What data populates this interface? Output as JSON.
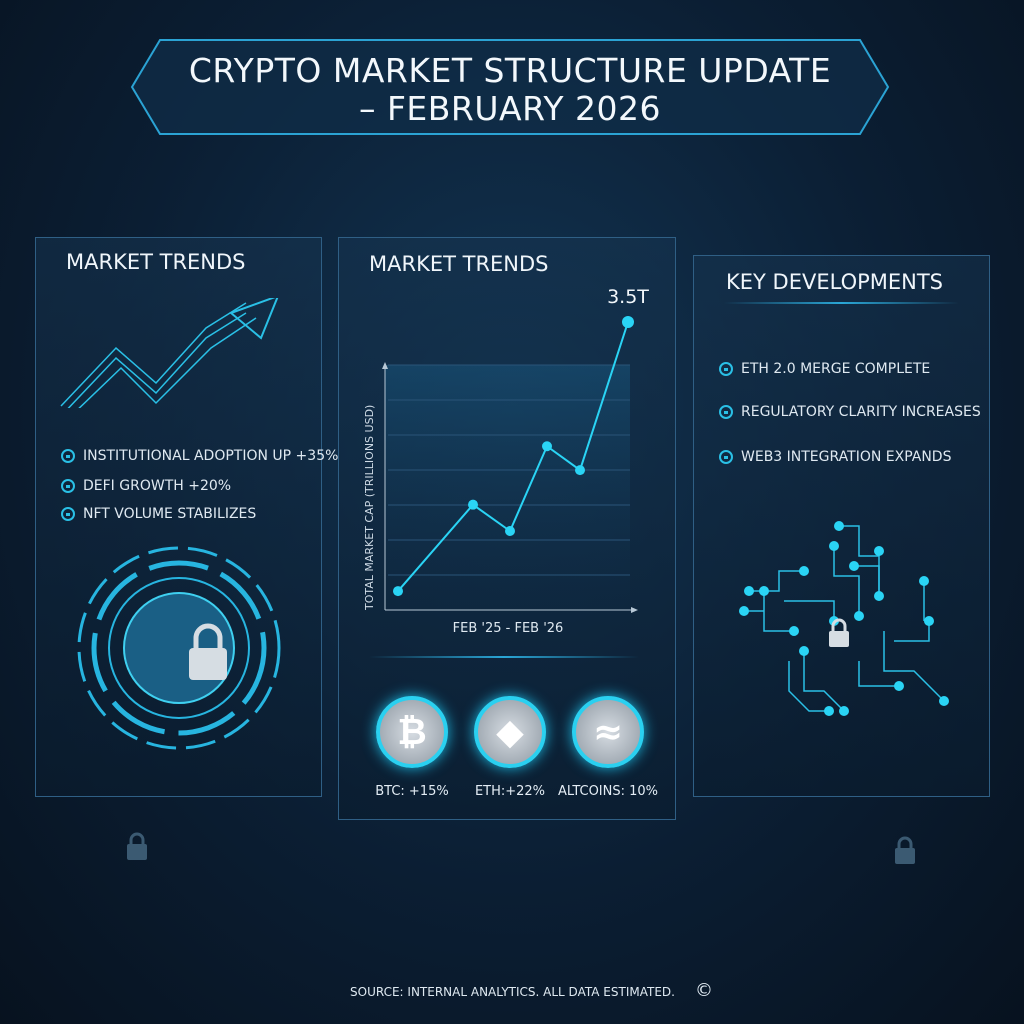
{
  "header": {
    "title_line1": "CRYPTO MARKET STRUCTURE UPDATE",
    "title_line2": "– FEBRUARY 2026"
  },
  "left_panel": {
    "title": "MARKET TRENDS",
    "items": [
      {
        "icon": "lock-icon",
        "label": "INSTITUTIONAL ADOPTION UP +35%"
      },
      {
        "icon": "lock-icon",
        "label": "DEFI GROWTH +20%"
      },
      {
        "icon": "lock-icon",
        "label": "NFT VOLUME STABILIZES"
      }
    ]
  },
  "center_panel": {
    "title": "MARKET TRENDS",
    "coins": [
      {
        "icon": "bitcoin-icon",
        "label": "BTC: +15%"
      },
      {
        "icon": "ethereum-icon",
        "label": "ETH:+22%"
      },
      {
        "icon": "altcoin-wave-icon",
        "label": "ALTCOINS: 10%"
      }
    ]
  },
  "right_panel": {
    "title": "KEY DEVELOPMENTS",
    "items": [
      {
        "icon": "lock-icon",
        "label": "ETH 2.0 MERGE COMPLETE"
      },
      {
        "icon": "lock-icon",
        "label": "REGULATORY CLARITY INCREASES"
      },
      {
        "icon": "network-icon",
        "label": "WEB3 INTEGRATION EXPANDS"
      }
    ]
  },
  "chart_data": {
    "type": "line",
    "ylabel": "TOTAL MARKET CAP (TRILLIONS USD)",
    "xlabel": "FEB '25 - FEB '26",
    "values": [
      0.23,
      1.28,
      0.96,
      1.99,
      1.7,
      3.5
    ],
    "annotation": "3.5T",
    "ylim": [
      0,
      3.5
    ],
    "grid": true,
    "color": "#2ad4f5"
  },
  "footer": {
    "source": "SOURCE: INTERNAL ANALYTICS. ALL DATA ESTIMATED.",
    "copyright": "©"
  },
  "colors": {
    "accent": "#2ad4f5",
    "background": "#0b1e33",
    "panel_border": "#2f5f85"
  }
}
